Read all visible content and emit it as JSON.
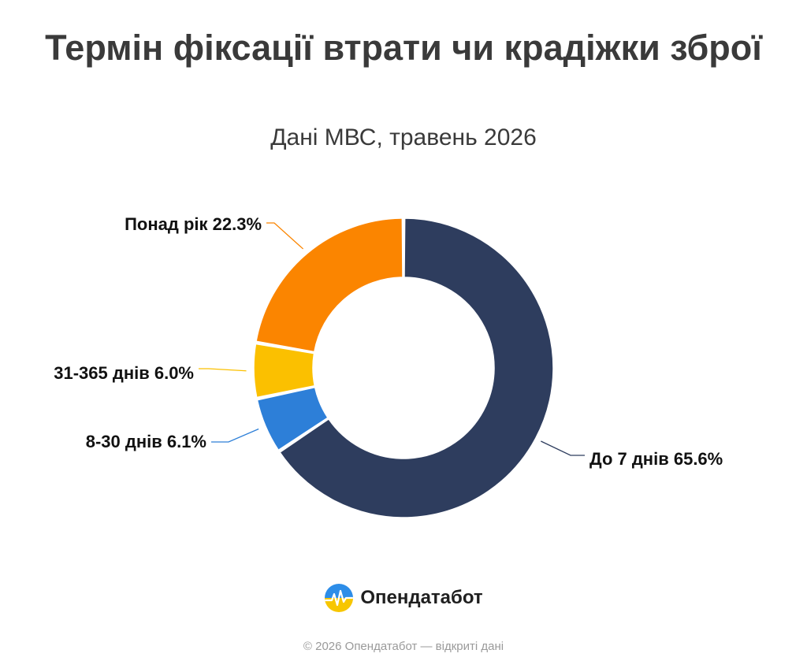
{
  "title": "Термін фіксації втрати чи крадіжки зброї",
  "subtitle": "Дані МВС, травень 2026",
  "brand": {
    "name": "Опендатабот",
    "icon": "opendatabot-logo-icon"
  },
  "footer": "© 2026 Опендатабот — відкриті дані",
  "chart_data": {
    "type": "pie",
    "variant": "donut",
    "legend": "none",
    "slices": [
      {
        "label": "До 7 днів",
        "value": 65.6,
        "display": "До 7 днів 65.6%",
        "color": "#2e3d5e"
      },
      {
        "label": "8-30 днів",
        "value": 6.1,
        "display": "8-30 днів 6.1%",
        "color": "#2d7fd8"
      },
      {
        "label": "31-365 днів",
        "value": 6.0,
        "display": "31-365 днів 6.0%",
        "color": "#fbc000"
      },
      {
        "label": "Понад рік",
        "value": 22.3,
        "display": "Понад рік 22.3%",
        "color": "#fb8500"
      }
    ]
  }
}
